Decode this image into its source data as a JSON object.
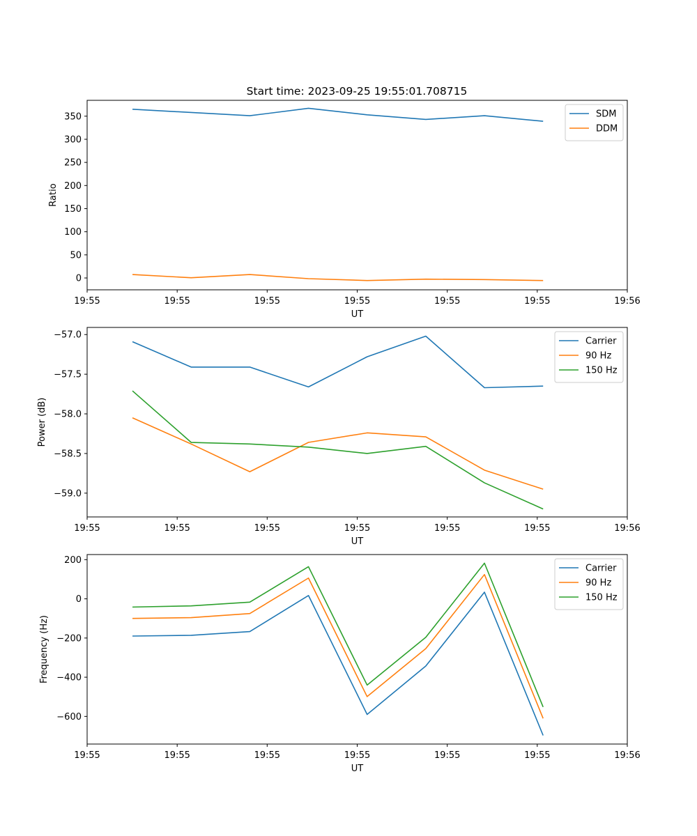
{
  "title": "Start time: 2023-09-25 19:55:01.708715",
  "colors": {
    "blue": "#1f77b4",
    "orange": "#ff7f0e",
    "green": "#2ca02c"
  },
  "chart_data": [
    {
      "type": "line",
      "name": "ratio",
      "xlabel": "UT",
      "ylabel": "Ratio",
      "x": [
        0,
        1,
        2,
        3,
        4,
        5,
        6,
        7
      ],
      "xlim": [
        -0.773,
        8.435
      ],
      "xticks": [
        -0.773,
        0.762,
        2.296,
        3.831,
        5.366,
        6.9,
        8.435
      ],
      "xtick_labels": [
        "19:55",
        "19:55",
        "19:55",
        "19:55",
        "19:55",
        "19:55",
        "19:56"
      ],
      "ylim": [
        -25.6,
        384.3
      ],
      "yticks": [
        0,
        50,
        100,
        150,
        200,
        250,
        300,
        350
      ],
      "ytick_labels": [
        "0",
        "50",
        "100",
        "150",
        "200",
        "250",
        "300",
        "350"
      ],
      "legend": "top-right",
      "series": [
        {
          "name": "SDM",
          "color": "#1f77b4",
          "values": [
            365,
            358,
            351,
            367,
            353,
            343,
            351,
            339
          ]
        },
        {
          "name": "DDM",
          "color": "#ff7f0e",
          "values": [
            7.5,
            0.5,
            7.5,
            -1.5,
            -5.5,
            -2.5,
            -3.5,
            -5.5
          ]
        }
      ]
    },
    {
      "type": "line",
      "name": "power",
      "xlabel": "UT",
      "ylabel": "Power (dB)",
      "x": [
        0,
        1,
        2,
        3,
        4,
        5,
        6,
        7
      ],
      "xlim": [
        -0.773,
        8.435
      ],
      "xticks": [
        -0.773,
        0.762,
        2.296,
        3.831,
        5.366,
        6.9,
        8.435
      ],
      "xtick_labels": [
        "19:55",
        "19:55",
        "19:55",
        "19:55",
        "19:55",
        "19:55",
        "19:56"
      ],
      "ylim": [
        -59.3,
        -56.91
      ],
      "yticks": [
        -57.0,
        -57.5,
        -58.0,
        -58.5,
        -59.0
      ],
      "ytick_labels": [
        "−57.0",
        "−57.5",
        "−58.0",
        "−58.5",
        "−59.0"
      ],
      "legend": "top-right",
      "series": [
        {
          "name": "Carrier",
          "color": "#1f77b4",
          "values": [
            -57.09,
            -57.41,
            -57.41,
            -57.66,
            -57.28,
            -57.02,
            -57.67,
            -57.65
          ]
        },
        {
          "name": "90 Hz",
          "color": "#ff7f0e",
          "values": [
            -58.05,
            -58.38,
            -58.73,
            -58.36,
            -58.24,
            -58.29,
            -58.71,
            -58.95
          ]
        },
        {
          "name": "150 Hz",
          "color": "#2ca02c",
          "values": [
            -57.71,
            -58.36,
            -58.38,
            -58.42,
            -58.5,
            -58.41,
            -58.87,
            -59.2
          ]
        }
      ]
    },
    {
      "type": "line",
      "name": "frequency",
      "xlabel": "UT",
      "ylabel": "Frequency (Hz)",
      "x": [
        0,
        1,
        2,
        3,
        4,
        5,
        6,
        7
      ],
      "xlim": [
        -0.773,
        8.435
      ],
      "xticks": [
        -0.773,
        0.762,
        2.296,
        3.831,
        5.366,
        6.9,
        8.435
      ],
      "xtick_labels": [
        "19:55",
        "19:55",
        "19:55",
        "19:55",
        "19:55",
        "19:55",
        "19:56"
      ],
      "ylim": [
        -741,
        226
      ],
      "yticks": [
        200,
        0,
        -200,
        -400,
        -600
      ],
      "ytick_labels": [
        "200",
        "0",
        "−200",
        "−400",
        "−600"
      ],
      "legend": "top-right",
      "series": [
        {
          "name": "Carrier",
          "color": "#1f77b4",
          "values": [
            -190,
            -186,
            -167,
            17,
            -590,
            -343,
            34,
            -697
          ]
        },
        {
          "name": "90 Hz",
          "color": "#ff7f0e",
          "values": [
            -100,
            -96,
            -75,
            106,
            -499,
            -254,
            124,
            -610
          ]
        },
        {
          "name": "150 Hz",
          "color": "#2ca02c",
          "values": [
            -42,
            -36,
            -17,
            164,
            -440,
            -196,
            182,
            -552
          ]
        }
      ]
    }
  ]
}
